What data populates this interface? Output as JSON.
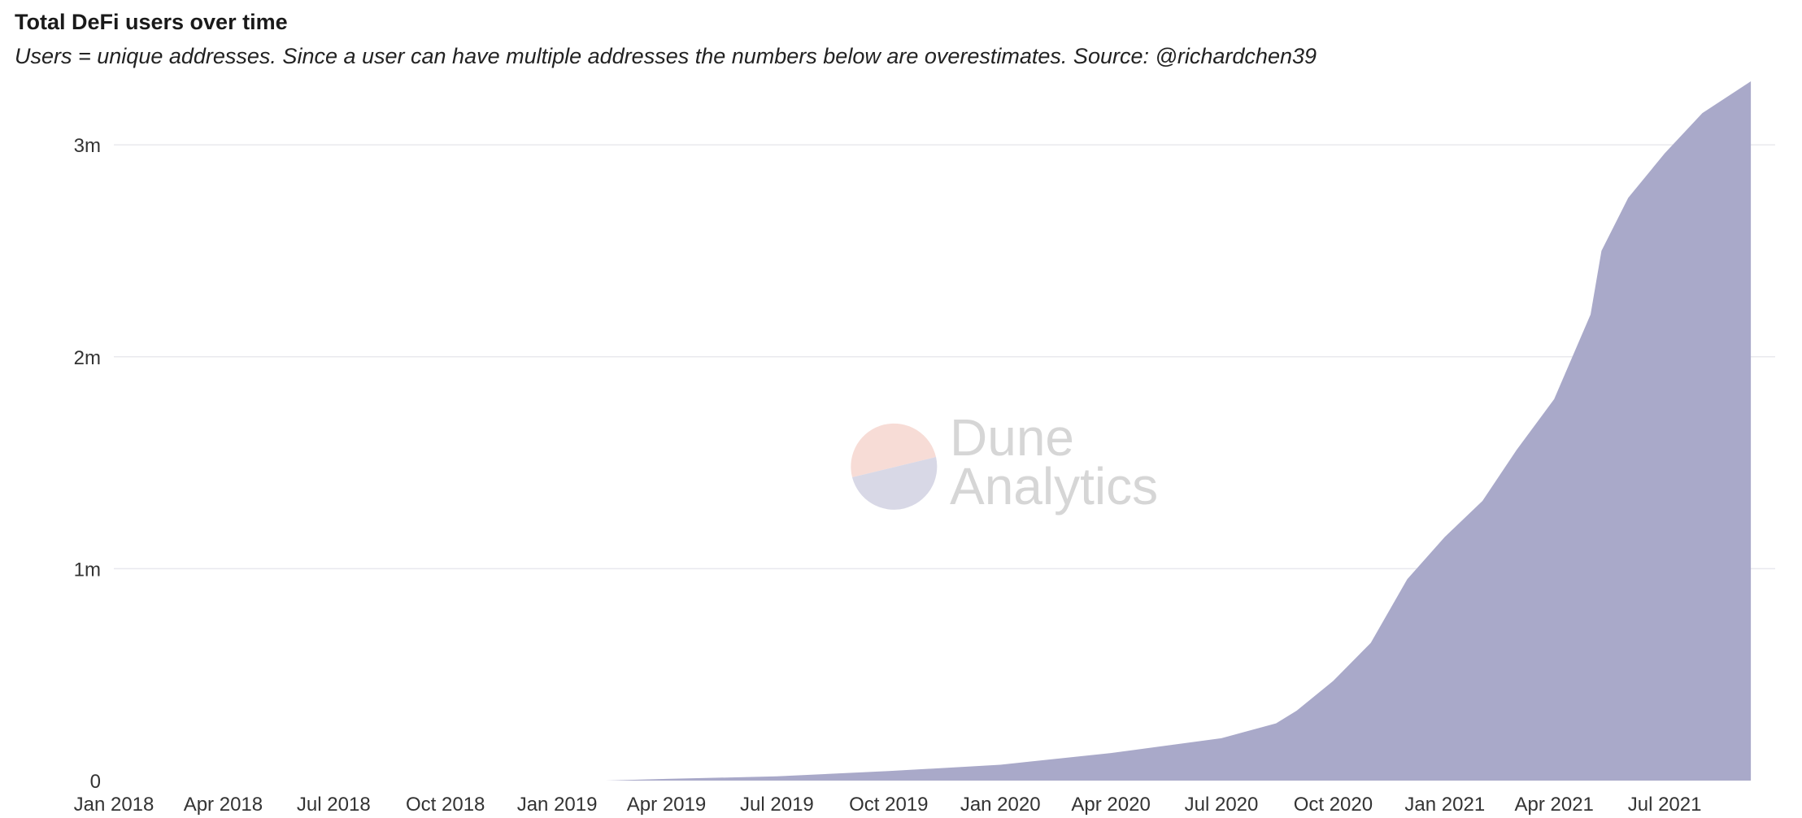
{
  "title": "Total DeFi users over time",
  "subtitle": "Users = unique addresses. Since a user can have multiple addresses the numbers below are overestimates. Source: @richardchen39",
  "watermark": {
    "line1": "Dune",
    "line2": "Analytics"
  },
  "colors": {
    "area": "#a9a9c9",
    "grid": "#e9e9ee",
    "wm_top": "#f7dcd6",
    "wm_bottom": "#d8d8e6"
  },
  "chart_data": {
    "type": "area",
    "title": "Total DeFi users over time",
    "xlabel": "",
    "ylabel": "",
    "x_range": [
      "2018-01-01",
      "2021-09-30"
    ],
    "ylim": [
      0,
      3300000
    ],
    "yticks": [
      {
        "value": 0,
        "label": "0"
      },
      {
        "value": 1000000,
        "label": "1m"
      },
      {
        "value": 2000000,
        "label": "2m"
      },
      {
        "value": 3000000,
        "label": "3m"
      }
    ],
    "xticks": [
      {
        "date": "2018-01-01",
        "label": "Jan 2018"
      },
      {
        "date": "2018-04-01",
        "label": "Apr 2018"
      },
      {
        "date": "2018-07-01",
        "label": "Jul 2018"
      },
      {
        "date": "2018-10-01",
        "label": "Oct 2018"
      },
      {
        "date": "2019-01-01",
        "label": "Jan 2019"
      },
      {
        "date": "2019-04-01",
        "label": "Apr 2019"
      },
      {
        "date": "2019-07-01",
        "label": "Jul 2019"
      },
      {
        "date": "2019-10-01",
        "label": "Oct 2019"
      },
      {
        "date": "2020-01-01",
        "label": "Jan 2020"
      },
      {
        "date": "2020-04-01",
        "label": "Apr 2020"
      },
      {
        "date": "2020-07-01",
        "label": "Jul 2020"
      },
      {
        "date": "2020-10-01",
        "label": "Oct 2020"
      },
      {
        "date": "2021-01-01",
        "label": "Jan 2021"
      },
      {
        "date": "2021-04-01",
        "label": "Apr 2021"
      },
      {
        "date": "2021-07-01",
        "label": "Jul 2021"
      }
    ],
    "grid": true,
    "legend": "none",
    "series": [
      {
        "points": [
          [
            "2019-02-10",
            0
          ],
          [
            "2019-04-01",
            8000
          ],
          [
            "2019-07-01",
            20000
          ],
          [
            "2019-10-01",
            45000
          ],
          [
            "2020-01-01",
            75000
          ],
          [
            "2020-04-01",
            130000
          ],
          [
            "2020-07-01",
            200000
          ],
          [
            "2020-08-15",
            270000
          ],
          [
            "2020-09-01",
            330000
          ],
          [
            "2020-10-01",
            470000
          ],
          [
            "2020-11-01",
            650000
          ],
          [
            "2020-12-01",
            950000
          ],
          [
            "2021-01-01",
            1150000
          ],
          [
            "2021-02-01",
            1320000
          ],
          [
            "2021-03-01",
            1560000
          ],
          [
            "2021-04-01",
            1800000
          ],
          [
            "2021-05-01",
            2200000
          ],
          [
            "2021-05-10",
            2500000
          ],
          [
            "2021-06-01",
            2750000
          ],
          [
            "2021-07-01",
            2960000
          ],
          [
            "2021-08-01",
            3150000
          ],
          [
            "2021-09-10",
            3300000
          ]
        ]
      }
    ]
  }
}
